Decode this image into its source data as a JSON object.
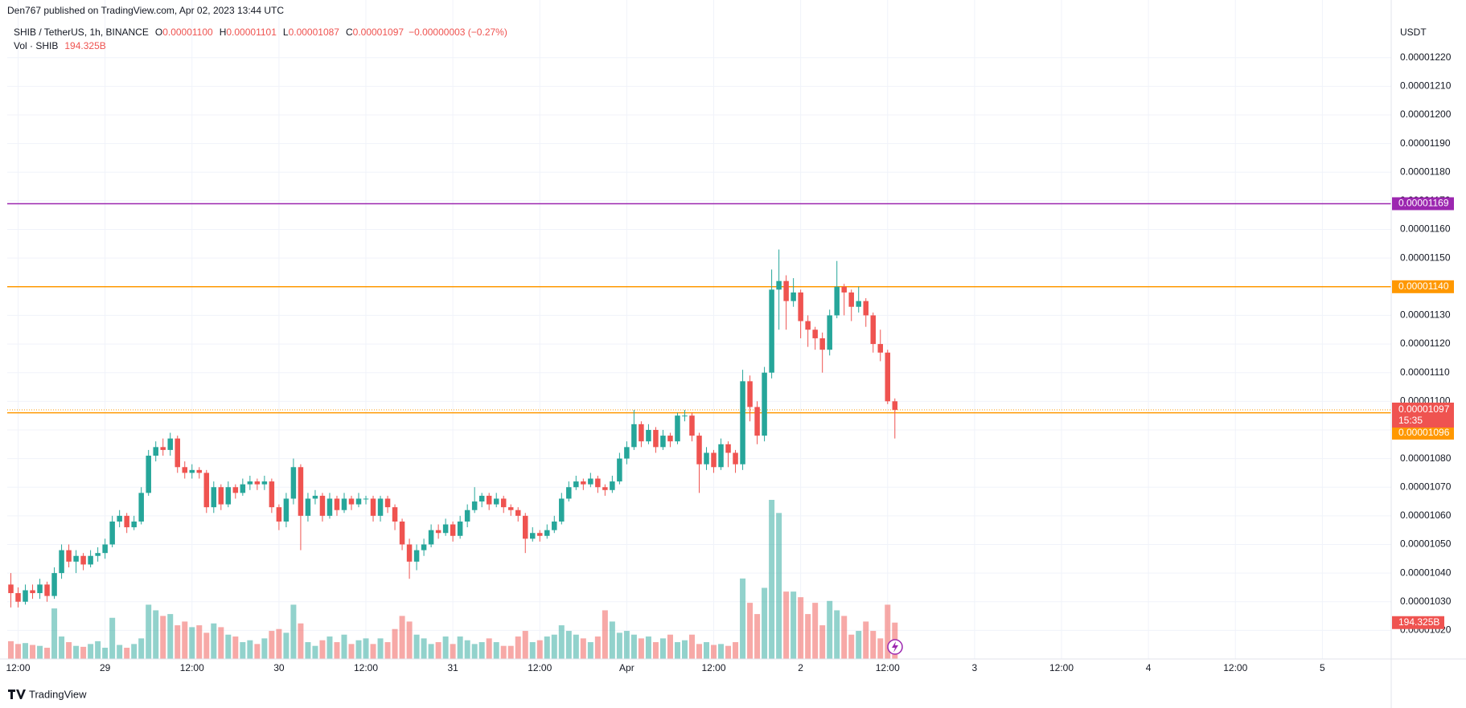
{
  "header": {
    "published": "Den767 published on TradingView.com, Apr 02, 2023 13:44 UTC",
    "footer": "TradingView"
  },
  "chart_data": {
    "type": "candlestick",
    "symbol": "SHIB / TetherUS, 1h, BINANCE",
    "legend": {
      "open_key": "O",
      "open": "0.00001100",
      "high_key": "H",
      "high": "0.00001101",
      "low_key": "L",
      "low": "0.00001087",
      "close_key": "C",
      "close": "0.00001097",
      "change": "−0.00000003 (−0.27%)"
    },
    "currency": "USDT",
    "up_color": "#26a69a",
    "down_color": "#ef5350",
    "x": [
      11,
      12,
      13,
      14,
      15,
      16,
      17,
      18,
      19,
      20,
      21,
      22,
      23,
      24,
      25,
      26,
      27,
      28,
      29,
      30,
      31,
      32,
      33,
      34,
      35,
      36,
      37,
      38,
      39,
      40,
      41,
      42,
      43,
      44,
      45,
      46,
      47,
      48,
      49,
      50,
      51,
      52,
      53,
      54,
      55,
      56,
      57,
      58,
      59,
      60,
      61,
      62,
      63,
      64,
      65,
      66,
      67,
      68,
      69,
      70,
      71,
      72,
      73,
      74,
      75,
      76,
      77,
      78,
      79,
      80,
      81,
      82,
      83,
      84,
      85,
      86,
      87,
      88,
      89,
      90,
      91,
      92,
      93,
      94,
      95,
      96,
      97,
      98,
      99,
      100,
      101,
      102,
      103,
      104,
      105,
      106,
      107,
      108,
      109,
      110,
      111,
      112,
      113,
      114,
      115,
      116,
      117,
      118,
      119,
      120,
      121,
      122,
      123,
      124,
      125,
      126,
      127,
      128,
      129,
      130,
      131,
      132,
      133
    ],
    "open": [
      1.036e-05,
      1.033e-05,
      1.03e-05,
      1.034e-05,
      1.033e-05,
      1.036e-05,
      1.032e-05,
      1.04e-05,
      1.048e-05,
      1.044e-05,
      1.046e-05,
      1.043e-05,
      1.046e-05,
      1.047e-05,
      1.05e-05,
      1.058e-05,
      1.06e-05,
      1.056e-05,
      1.058e-05,
      1.068e-05,
      1.081e-05,
      1.084e-05,
      1.083e-05,
      1.087e-05,
      1.077e-05,
      1.075e-05,
      1.076e-05,
      1.075e-05,
      1.063e-05,
      1.07e-05,
      1.064e-05,
      1.07e-05,
      1.068e-05,
      1.071e-05,
      1.072e-05,
      1.071e-05,
      1.072e-05,
      1.063e-05,
      1.058e-05,
      1.066e-05,
      1.077e-05,
      1.06e-05,
      1.066e-05,
      1.067e-05,
      1.06e-05,
      1.066e-05,
      1.062e-05,
      1.066e-05,
      1.064e-05,
      1.066e-05,
      1.066e-05,
      1.06e-05,
      1.066e-05,
      1.063e-05,
      1.058e-05,
      1.05e-05,
      1.044e-05,
      1.048e-05,
      1.05e-05,
      1.055e-05,
      1.054e-05,
      1.057e-05,
      1.053e-05,
      1.058e-05,
      1.062e-05,
      1.065e-05,
      1.067e-05,
      1.064e-05,
      1.066e-05,
      1.063e-05,
      1.062e-05,
      1.06e-05,
      1.052e-05,
      1.054e-05,
      1.053e-05,
      1.055e-05,
      1.058e-05,
      1.066e-05,
      1.07e-05,
      1.072e-05,
      1.071e-05,
      1.073e-05,
      1.07e-05,
      1.069e-05,
      1.072e-05,
      1.08e-05,
      1.084e-05,
      1.092e-05,
      1.086e-05,
      1.09e-05,
      1.084e-05,
      1.088e-05,
      1.086e-05,
      1.095e-05,
      1.095e-05,
      1.088e-05,
      1.078e-05,
      1.082e-05,
      1.077e-05,
      1.085e-05,
      1.082e-05,
      1.078e-05,
      1.107e-05,
      1.098e-05,
      1.088e-05,
      1.11e-05,
      1.139e-05,
      1.142e-05,
      1.135e-05,
      1.138e-05,
      1.128e-05,
      1.125e-05,
      1.122e-05,
      1.118e-05,
      1.13e-05,
      1.14e-05,
      1.138e-05,
      1.133e-05,
      1.135e-05,
      1.13e-05,
      1.12e-05,
      1.117e-05,
      1.1e-05
    ],
    "high": [
      1.04e-05,
      1.035e-05,
      1.036e-05,
      1.036e-05,
      1.038e-05,
      1.037e-05,
      1.042e-05,
      1.05e-05,
      1.05e-05,
      1.048e-05,
      1.047e-05,
      1.048e-05,
      1.049e-05,
      1.052e-05,
      1.06e-05,
      1.062e-05,
      1.061e-05,
      1.06e-05,
      1.07e-05,
      1.083e-05,
      1.086e-05,
      1.087e-05,
      1.089e-05,
      1.088e-05,
      1.079e-05,
      1.078e-05,
      1.077e-05,
      1.076e-05,
      1.072e-05,
      1.071e-05,
      1.072e-05,
      1.071e-05,
      1.073e-05,
      1.074e-05,
      1.073e-05,
      1.074e-05,
      1.073e-05,
      1.064e-05,
      1.068e-05,
      1.08e-05,
      1.078e-05,
      1.068e-05,
      1.069e-05,
      1.068e-05,
      1.068e-05,
      1.067e-05,
      1.068e-05,
      1.067e-05,
      1.068e-05,
      1.067e-05,
      1.067e-05,
      1.067e-05,
      1.067e-05,
      1.064e-05,
      1.059e-05,
      1.052e-05,
      1.05e-05,
      1.052e-05,
      1.057e-05,
      1.057e-05,
      1.059e-05,
      1.058e-05,
      1.06e-05,
      1.064e-05,
      1.07e-05,
      1.068e-05,
      1.068e-05,
      1.068e-05,
      1.067e-05,
      1.064e-05,
      1.063e-05,
      1.061e-05,
      1.056e-05,
      1.055e-05,
      1.057e-05,
      1.06e-05,
      1.068e-05,
      1.072e-05,
      1.074e-05,
      1.073e-05,
      1.075e-05,
      1.074e-05,
      1.071e-05,
      1.074e-05,
      1.082e-05,
      1.086e-05,
      1.097e-05,
      1.093e-05,
      1.092e-05,
      1.091e-05,
      1.09e-05,
      1.089e-05,
      1.096e-05,
      1.097e-05,
      1.096e-05,
      1.089e-05,
      1.084e-05,
      1.083e-05,
      1.087e-05,
      1.086e-05,
      1.083e-05,
      1.111e-05,
      1.109e-05,
      1.1e-05,
      1.112e-05,
      1.146e-05,
      1.153e-05,
      1.144e-05,
      1.143e-05,
      1.139e-05,
      1.13e-05,
      1.126e-05,
      1.124e-05,
      1.132e-05,
      1.149e-05,
      1.141e-05,
      1.139e-05,
      1.14e-05,
      1.136e-05,
      1.131e-05,
      1.125e-05,
      1.118e-05,
      1.101e-05
    ],
    "low": [
      1.028e-05,
      1.028e-05,
      1.029e-05,
      1.031e-05,
      1.031e-05,
      1.03e-05,
      1.031e-05,
      1.038e-05,
      1.042e-05,
      1.04e-05,
      1.041e-05,
      1.042e-05,
      1.044e-05,
      1.045e-05,
      1.049e-05,
      1.056e-05,
      1.054e-05,
      1.055e-05,
      1.057e-05,
      1.067e-05,
      1.079e-05,
      1.081e-05,
      1.081e-05,
      1.075e-05,
      1.073e-05,
      1.073e-05,
      1.073e-05,
      1.061e-05,
      1.061e-05,
      1.062e-05,
      1.063e-05,
      1.066e-05,
      1.067e-05,
      1.069e-05,
      1.069e-05,
      1.069e-05,
      1.061e-05,
      1.055e-05,
      1.056e-05,
      1.064e-05,
      1.048e-05,
      1.058e-05,
      1.064e-05,
      1.058e-05,
      1.059e-05,
      1.06e-05,
      1.061e-05,
      1.062e-05,
      1.063e-05,
      1.064e-05,
      1.058e-05,
      1.058e-05,
      1.061e-05,
      1.055e-05,
      1.048e-05,
      1.038e-05,
      1.041e-05,
      1.046e-05,
      1.049e-05,
      1.052e-05,
      1.053e-05,
      1.051e-05,
      1.052e-05,
      1.056e-05,
      1.061e-05,
      1.063e-05,
      1.062e-05,
      1.063e-05,
      1.061e-05,
      1.06e-05,
      1.058e-05,
      1.047e-05,
      1.051e-05,
      1.051e-05,
      1.052e-05,
      1.054e-05,
      1.057e-05,
      1.065e-05,
      1.069e-05,
      1.069e-05,
      1.07e-05,
      1.068e-05,
      1.067e-05,
      1.068e-05,
      1.071e-05,
      1.078e-05,
      1.083e-05,
      1.084e-05,
      1.085e-05,
      1.082e-05,
      1.083e-05,
      1.084e-05,
      1.085e-05,
      1.093e-05,
      1.086e-05,
      1.068e-05,
      1.076e-05,
      1.075e-05,
      1.076e-05,
      1.077e-05,
      1.075e-05,
      1.076e-05,
      1.093e-05,
      1.085e-05,
      1.086e-05,
      1.108e-05,
      1.125e-05,
      1.125e-05,
      1.133e-05,
      1.122e-05,
      1.119e-05,
      1.118e-05,
      1.11e-05,
      1.116e-05,
      1.129e-05,
      1.13e-05,
      1.128e-05,
      1.131e-05,
      1.126e-05,
      1.117e-05,
      1.114e-05,
      1.099e-05,
      1.087e-05
    ],
    "close": [
      1.033e-05,
      1.03e-05,
      1.034e-05,
      1.033e-05,
      1.036e-05,
      1.032e-05,
      1.04e-05,
      1.048e-05,
      1.044e-05,
      1.046e-05,
      1.043e-05,
      1.046e-05,
      1.047e-05,
      1.05e-05,
      1.058e-05,
      1.06e-05,
      1.056e-05,
      1.058e-05,
      1.068e-05,
      1.081e-05,
      1.084e-05,
      1.083e-05,
      1.087e-05,
      1.077e-05,
      1.075e-05,
      1.076e-05,
      1.075e-05,
      1.063e-05,
      1.07e-05,
      1.064e-05,
      1.07e-05,
      1.068e-05,
      1.071e-05,
      1.072e-05,
      1.071e-05,
      1.072e-05,
      1.063e-05,
      1.058e-05,
      1.066e-05,
      1.077e-05,
      1.06e-05,
      1.066e-05,
      1.067e-05,
      1.06e-05,
      1.066e-05,
      1.062e-05,
      1.066e-05,
      1.064e-05,
      1.066e-05,
      1.066e-05,
      1.06e-05,
      1.066e-05,
      1.063e-05,
      1.058e-05,
      1.05e-05,
      1.044e-05,
      1.048e-05,
      1.05e-05,
      1.055e-05,
      1.054e-05,
      1.057e-05,
      1.053e-05,
      1.058e-05,
      1.062e-05,
      1.065e-05,
      1.067e-05,
      1.064e-05,
      1.066e-05,
      1.063e-05,
      1.062e-05,
      1.06e-05,
      1.052e-05,
      1.054e-05,
      1.053e-05,
      1.055e-05,
      1.058e-05,
      1.066e-05,
      1.07e-05,
      1.072e-05,
      1.071e-05,
      1.073e-05,
      1.07e-05,
      1.069e-05,
      1.072e-05,
      1.08e-05,
      1.084e-05,
      1.092e-05,
      1.086e-05,
      1.09e-05,
      1.084e-05,
      1.088e-05,
      1.086e-05,
      1.095e-05,
      1.095e-05,
      1.088e-05,
      1.078e-05,
      1.082e-05,
      1.077e-05,
      1.085e-05,
      1.082e-05,
      1.078e-05,
      1.107e-05,
      1.098e-05,
      1.088e-05,
      1.11e-05,
      1.139e-05,
      1.142e-05,
      1.135e-05,
      1.138e-05,
      1.128e-05,
      1.125e-05,
      1.122e-05,
      1.118e-05,
      1.13e-05,
      1.14e-05,
      1.138e-05,
      1.133e-05,
      1.135e-05,
      1.13e-05,
      1.12e-05,
      1.117e-05,
      1.1e-05,
      1.097e-05
    ],
    "volume": {
      "name": "Vol · SHIB",
      "last_label": "194.325B",
      "up_color": "#26a69a",
      "down_color": "#ef5350",
      "values": [
        95,
        80,
        85,
        75,
        70,
        60,
        270,
        120,
        90,
        70,
        65,
        80,
        95,
        60,
        220,
        75,
        60,
        80,
        110,
        290,
        260,
        230,
        240,
        180,
        200,
        170,
        180,
        140,
        190,
        170,
        130,
        120,
        90,
        100,
        80,
        110,
        150,
        160,
        140,
        290,
        190,
        90,
        70,
        100,
        120,
        90,
        130,
        80,
        100,
        110,
        80,
        110,
        90,
        160,
        230,
        200,
        130,
        110,
        80,
        90,
        120,
        80,
        120,
        100,
        80,
        90,
        110,
        90,
        70,
        70,
        120,
        150,
        90,
        100,
        120,
        130,
        180,
        150,
        130,
        110,
        90,
        120,
        260,
        200,
        140,
        150,
        130,
        110,
        120,
        90,
        110,
        130,
        90,
        100,
        130,
        80,
        90,
        75,
        80,
        70,
        90,
        430,
        300,
        240,
        380,
        850,
        780,
        360,
        360,
        330,
        240,
        300,
        180,
        310,
        260,
        230,
        130,
        150,
        200,
        150,
        110,
        290,
        194.325
      ]
    },
    "xlim": [
      10.5,
      201.5
    ],
    "xticks": [
      {
        "value": 12,
        "label": "12:00"
      },
      {
        "value": 24,
        "label": "29"
      },
      {
        "value": 36,
        "label": "12:00"
      },
      {
        "value": 48,
        "label": "30"
      },
      {
        "value": 60,
        "label": "12:00"
      },
      {
        "value": 72,
        "label": "31"
      },
      {
        "value": 84,
        "label": "12:00"
      },
      {
        "value": 96,
        "label": "Apr"
      },
      {
        "value": 108,
        "label": "12:00"
      },
      {
        "value": 120,
        "label": "2"
      },
      {
        "value": 132,
        "label": "12:00"
      },
      {
        "value": 144,
        "label": "3"
      },
      {
        "value": 156,
        "label": "12:00"
      },
      {
        "value": 168,
        "label": "4"
      },
      {
        "value": 180,
        "label": "12:00"
      },
      {
        "value": 192,
        "label": "5"
      }
    ],
    "ylim": [
      1.01e-05,
      1.232e-05
    ],
    "yticks": [
      {
        "value": 1.02e-05,
        "label": "0.00001020"
      },
      {
        "value": 1.03e-05,
        "label": "0.00001030"
      },
      {
        "value": 1.04e-05,
        "label": "0.00001040"
      },
      {
        "value": 1.05e-05,
        "label": "0.00001050"
      },
      {
        "value": 1.06e-05,
        "label": "0.00001060"
      },
      {
        "value": 1.07e-05,
        "label": "0.00001070"
      },
      {
        "value": 1.08e-05,
        "label": "0.00001080"
      },
      {
        "value": 1.09e-05,
        "label": "0.00001090"
      },
      {
        "value": 1.1e-05,
        "label": "0.00001100"
      },
      {
        "value": 1.11e-05,
        "label": "0.00001110"
      },
      {
        "value": 1.12e-05,
        "label": "0.00001120"
      },
      {
        "value": 1.13e-05,
        "label": "0.00001130"
      },
      {
        "value": 1.14e-05,
        "label": "0.00001140"
      },
      {
        "value": 1.15e-05,
        "label": "0.00001150"
      },
      {
        "value": 1.16e-05,
        "label": "0.00001160"
      },
      {
        "value": 1.17e-05,
        "label": "0.00001170"
      },
      {
        "value": 1.18e-05,
        "label": "0.00001180"
      },
      {
        "value": 1.19e-05,
        "label": "0.00001190"
      },
      {
        "value": 1.2e-05,
        "label": "0.00001200"
      },
      {
        "value": 1.21e-05,
        "label": "0.00001210"
      },
      {
        "value": 1.22e-05,
        "label": "0.00001220"
      }
    ],
    "grid": true,
    "levels": [
      {
        "value": 1.169e-05,
        "label": "0.00001169",
        "color": "#9c27b0",
        "style": "solid"
      },
      {
        "value": 1.14e-05,
        "label": "0.00001140",
        "color": "#ff9800",
        "style": "solid"
      },
      {
        "value": 1.096e-05,
        "label": "0.00001096",
        "color": "#ff9800",
        "style": "solid"
      }
    ],
    "last_price": {
      "value": 1.097e-05,
      "label": "0.00001097",
      "countdown": "15:35",
      "color": "#ef5350",
      "line_color": "#ff9800"
    }
  }
}
